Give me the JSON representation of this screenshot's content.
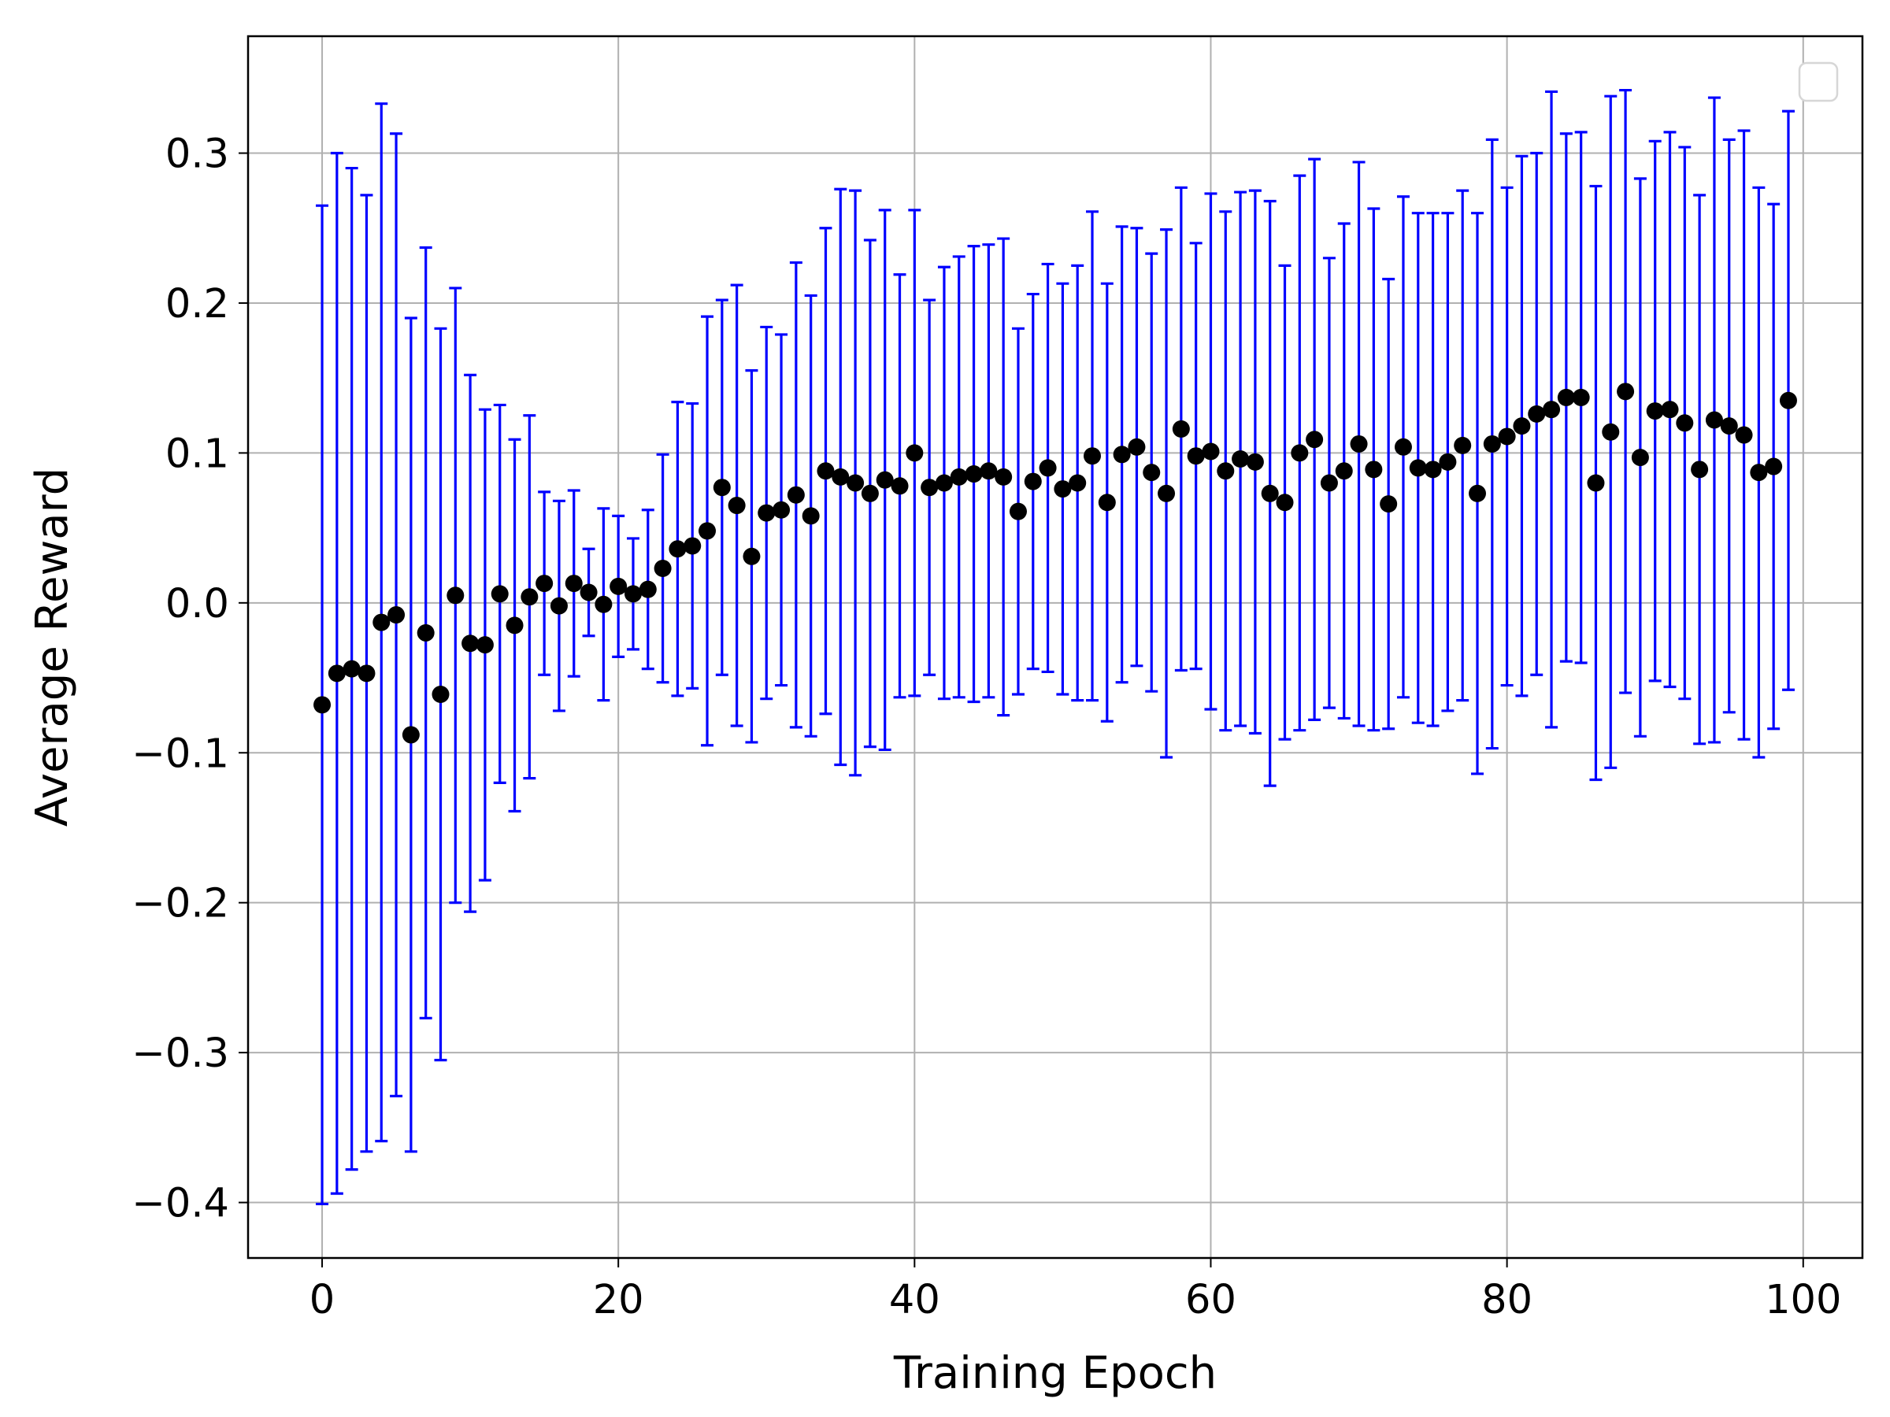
{
  "chart_data": {
    "type": "scatter",
    "xlabel": "Training Epoch",
    "ylabel": "Average Reward",
    "xlim": [
      -5,
      104
    ],
    "ylim": [
      -0.437,
      0.378
    ],
    "xticks": [
      0,
      20,
      40,
      60,
      80,
      100
    ],
    "yticks": [
      -0.4,
      -0.3,
      -0.2,
      -0.1,
      0.0,
      0.1,
      0.2,
      0.3
    ],
    "xtick_labels": [
      "0",
      "20",
      "40",
      "60",
      "80",
      "100"
    ],
    "ytick_labels": [
      "−0.4",
      "−0.3",
      "−0.2",
      "−0.1",
      "0.0",
      "0.1",
      "0.2",
      "0.3"
    ],
    "grid": true,
    "legend": "top-right (empty)",
    "colors": {
      "marker": "#000000",
      "errorbar": "#0000ff",
      "grid": "#b0b0b0"
    },
    "series": [
      {
        "x": [
          0,
          1,
          2,
          3,
          4,
          5,
          6,
          7,
          8,
          9,
          10,
          11,
          12,
          13,
          14,
          15,
          16,
          17,
          18,
          19,
          20,
          21,
          22,
          23,
          24,
          25,
          26,
          27,
          28,
          29,
          30,
          31,
          32,
          33,
          34,
          35,
          36,
          37,
          38,
          39,
          40,
          41,
          42,
          43,
          44,
          45,
          46,
          47,
          48,
          49,
          50,
          51,
          52,
          53,
          54,
          55,
          56,
          57,
          58,
          59,
          60,
          61,
          62,
          63,
          64,
          65,
          66,
          67,
          68,
          69,
          70,
          71,
          72,
          73,
          74,
          75,
          76,
          77,
          78,
          79,
          80,
          81,
          82,
          83,
          84,
          85,
          86,
          87,
          88,
          89,
          90,
          91,
          92,
          93,
          94,
          95,
          96,
          97,
          98,
          99
        ],
        "y": [
          -0.068,
          -0.047,
          -0.044,
          -0.047,
          -0.013,
          -0.008,
          -0.088,
          -0.02,
          -0.061,
          0.005,
          -0.027,
          -0.028,
          0.006,
          -0.015,
          0.004,
          0.013,
          -0.002,
          0.013,
          0.007,
          -0.001,
          0.011,
          0.006,
          0.009,
          0.023,
          0.036,
          0.038,
          0.048,
          0.077,
          0.065,
          0.031,
          0.06,
          0.062,
          0.072,
          0.058,
          0.088,
          0.084,
          0.08,
          0.073,
          0.082,
          0.078,
          0.1,
          0.077,
          0.08,
          0.084,
          0.086,
          0.088,
          0.084,
          0.061,
          0.081,
          0.09,
          0.076,
          0.08,
          0.098,
          0.067,
          0.099,
          0.104,
          0.087,
          0.073,
          0.116,
          0.098,
          0.101,
          0.088,
          0.096,
          0.094,
          0.073,
          0.067,
          0.1,
          0.109,
          0.08,
          0.088,
          0.106,
          0.089,
          0.066,
          0.104,
          0.09,
          0.089,
          0.094,
          0.105,
          0.073,
          0.106,
          0.111,
          0.118,
          0.126,
          0.129,
          0.137,
          0.137,
          0.08,
          0.114,
          0.141,
          0.097,
          0.128,
          0.129,
          0.12,
          0.089,
          0.122,
          0.118,
          0.112,
          0.087,
          0.091,
          0.135
        ],
        "yerr": [
          0.333,
          0.347,
          0.334,
          0.319,
          0.346,
          0.321,
          0.278,
          0.257,
          0.244,
          0.205,
          0.179,
          0.157,
          0.126,
          0.124,
          0.121,
          0.061,
          0.07,
          0.062,
          0.029,
          0.064,
          0.047,
          0.037,
          0.053,
          0.076,
          0.098,
          0.095,
          0.143,
          0.125,
          0.147,
          0.124,
          0.124,
          0.117,
          0.155,
          0.147,
          0.162,
          0.192,
          0.195,
          0.169,
          0.18,
          0.141,
          0.162,
          0.125,
          0.144,
          0.147,
          0.152,
          0.151,
          0.159,
          0.122,
          0.125,
          0.136,
          0.137,
          0.145,
          0.163,
          0.146,
          0.152,
          0.146,
          0.146,
          0.176,
          0.161,
          0.142,
          0.172,
          0.173,
          0.178,
          0.181,
          0.195,
          0.158,
          0.185,
          0.187,
          0.15,
          0.165,
          0.188,
          0.174,
          0.15,
          0.167,
          0.17,
          0.171,
          0.166,
          0.17,
          0.187,
          0.203,
          0.166,
          0.18,
          0.174,
          0.212,
          0.176,
          0.177,
          0.198,
          0.224,
          0.201,
          0.186,
          0.18,
          0.185,
          0.184,
          0.183,
          0.215,
          0.191,
          0.203,
          0.19,
          0.175,
          0.193
        ]
      }
    ]
  }
}
